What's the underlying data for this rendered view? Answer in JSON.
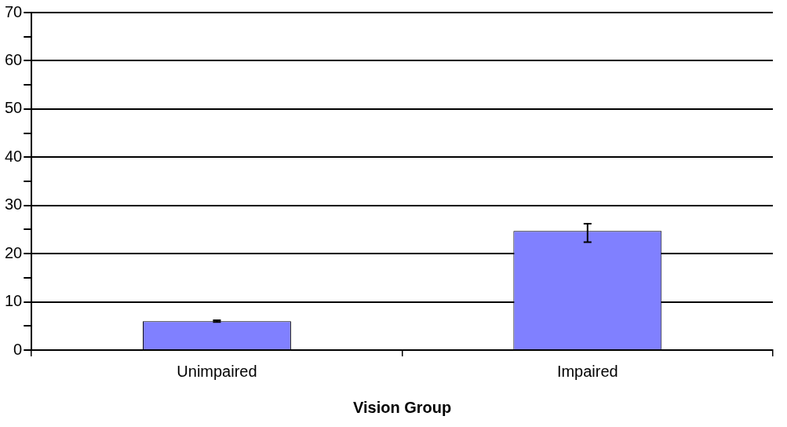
{
  "chart_data": {
    "type": "bar",
    "xlabel": "Vision Group",
    "categories": [
      "Unimpaired",
      "Impaired"
    ],
    "values": [
      6.0,
      24.7
    ],
    "errors": [
      0.2,
      [
        22.4,
        26.2
      ]
    ],
    "color": "#8080ff",
    "ylim": [
      0,
      70
    ],
    "yticks": [
      0,
      {
        "value": 5,
        "label": null
      },
      10,
      {
        "value": 15,
        "label": null
      },
      20,
      {
        "value": 25,
        "label": null
      },
      30,
      {
        "value": 35,
        "label": null
      },
      40,
      {
        "value": 45,
        "label": null
      },
      50,
      {
        "value": 55,
        "label": null
      },
      60,
      {
        "value": 65,
        "label": null
      },
      70
    ],
    "grid": "y"
  }
}
